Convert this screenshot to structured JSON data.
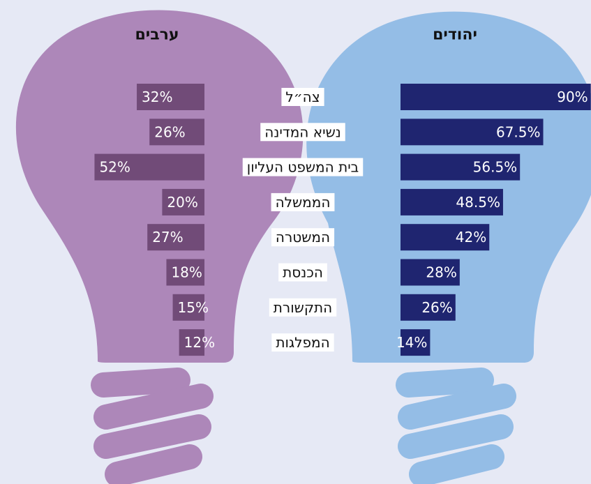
{
  "chart_data": {
    "type": "bar",
    "categories": [
      "צה״ל",
      "נשיא המדינה",
      "בית המשפט העליון",
      "הממשלה",
      "המשטרה",
      "הכנסת",
      "התקשורת",
      "המפלגות"
    ],
    "series": [
      {
        "name": "ערבים",
        "color": "#714b78",
        "values": [
          32,
          26,
          52,
          20,
          27,
          18,
          15,
          12
        ],
        "value_labels": [
          "32%",
          "26%",
          "52%",
          "20%",
          "27%",
          "18%",
          "15%",
          "12%"
        ]
      },
      {
        "name": "יהודים",
        "color": "#1f2570",
        "values": [
          90,
          67.5,
          56.5,
          48.5,
          42,
          28,
          26,
          14
        ],
        "value_labels": [
          "90%",
          "67.5%",
          "56.5%",
          "48.5%",
          "42%",
          "28%",
          "26%",
          "14%"
        ]
      }
    ]
  }
}
